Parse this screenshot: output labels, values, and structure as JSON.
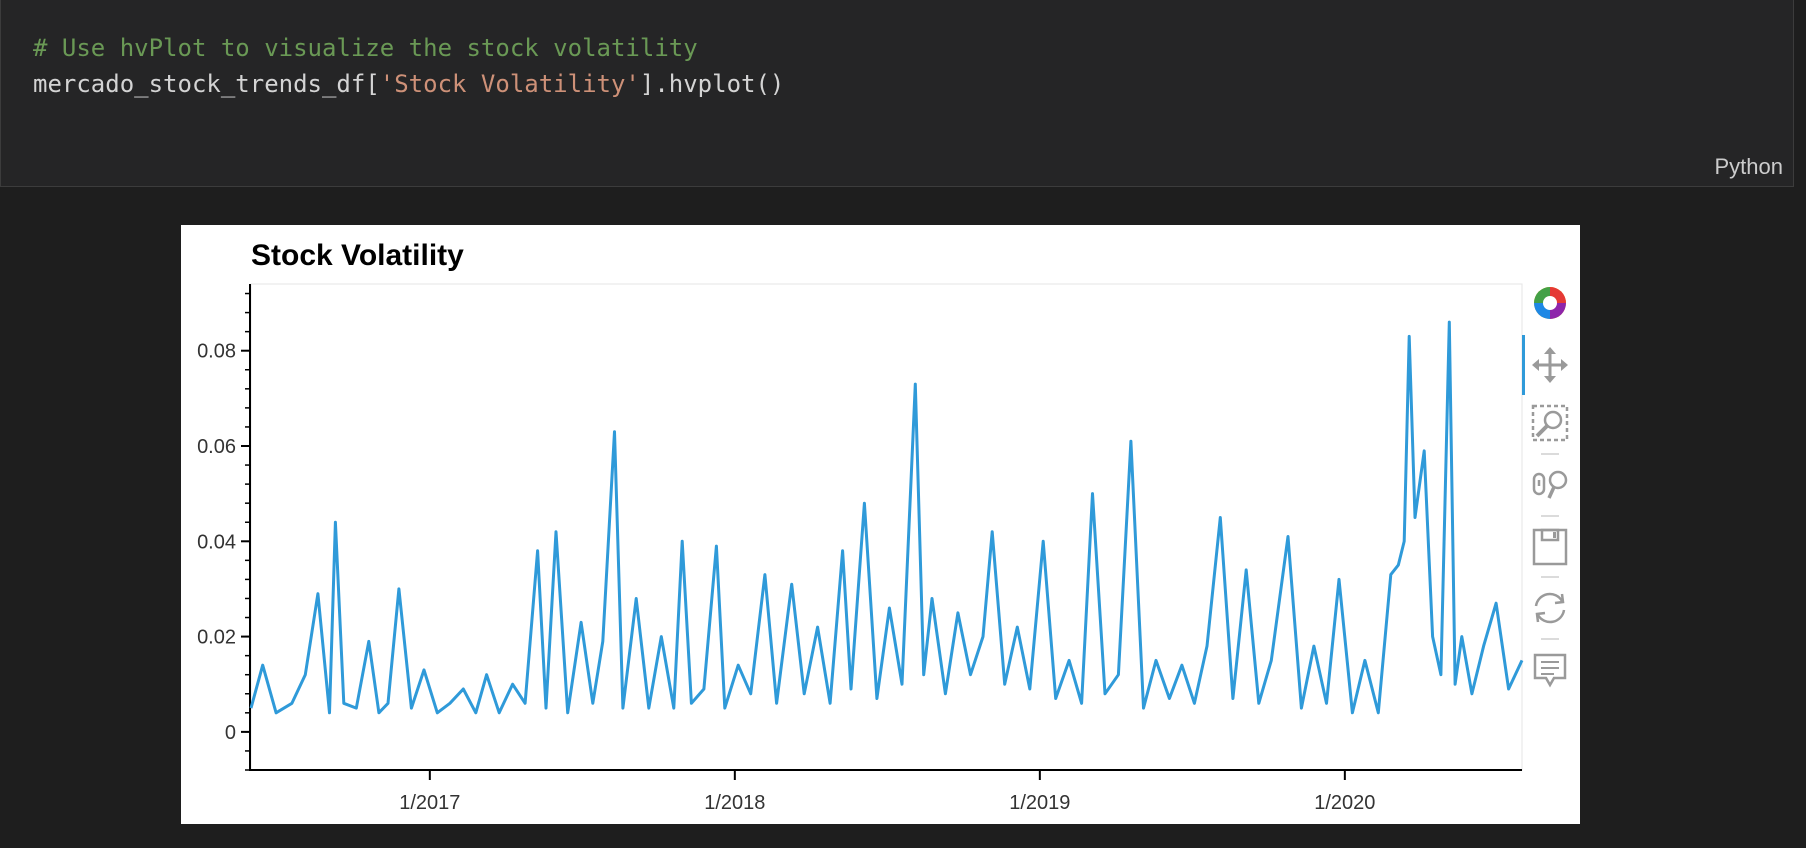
{
  "code_cell": {
    "comment": "# Use hvPlot to visualize the stock volatility",
    "code_prefix": "mercado_stock_trends_df[",
    "code_string": "'Stock Volatility'",
    "code_suffix": "].hvplot()",
    "language_label": "Python"
  },
  "toolbar": {
    "tools": [
      "bokeh-logo-icon",
      "pan-icon",
      "box-zoom-icon",
      "wheel-zoom-icon",
      "save-icon",
      "reset-icon",
      "hover-icon"
    ]
  },
  "colors": {
    "line": "#2f9ad9",
    "background": "#1e1e1e",
    "cell": "#252526"
  },
  "chart_data": {
    "type": "line",
    "title": "Stock Volatility",
    "xlabel": "",
    "ylabel": "",
    "x_ticks": [
      "1/2017",
      "1/2018",
      "1/2019",
      "1/2020"
    ],
    "y_ticks": [
      "0",
      "0.02",
      "0.04",
      "0.06",
      "0.08"
    ],
    "xlim": [
      "2016-06-01",
      "2020-07-31"
    ],
    "ylim": [
      -0.008,
      0.094
    ],
    "grid": false,
    "legend": "none",
    "series": [
      {
        "x": [
          "2016-06-01",
          "2016-06-15",
          "2016-07-01",
          "2016-07-20",
          "2016-08-05",
          "2016-08-20",
          "2016-09-03",
          "2016-09-10",
          "2016-09-20",
          "2016-10-05",
          "2016-10-20",
          "2016-11-01",
          "2016-11-12",
          "2016-11-25",
          "2016-12-10",
          "2016-12-25",
          "2017-01-10",
          "2017-01-25",
          "2017-02-10",
          "2017-02-25",
          "2017-03-10",
          "2017-03-25",
          "2017-04-10",
          "2017-04-25",
          "2017-05-10",
          "2017-05-20",
          "2017-06-01",
          "2017-06-15",
          "2017-07-01",
          "2017-07-15",
          "2017-07-27",
          "2017-08-10",
          "2017-08-20",
          "2017-09-05",
          "2017-09-20",
          "2017-10-05",
          "2017-10-20",
          "2017-10-30",
          "2017-11-10",
          "2017-11-25",
          "2017-12-10",
          "2017-12-20",
          "2018-01-05",
          "2018-01-20",
          "2018-02-06",
          "2018-02-20",
          "2018-03-10",
          "2018-03-25",
          "2018-04-10",
          "2018-04-25",
          "2018-05-10",
          "2018-05-20",
          "2018-06-05",
          "2018-06-20",
          "2018-07-05",
          "2018-07-20",
          "2018-08-05",
          "2018-08-15",
          "2018-08-25",
          "2018-09-10",
          "2018-09-25",
          "2018-10-10",
          "2018-10-25",
          "2018-11-05",
          "2018-11-20",
          "2018-12-05",
          "2018-12-20",
          "2019-01-05",
          "2019-01-20",
          "2019-02-05",
          "2019-02-20",
          "2019-03-05",
          "2019-03-20",
          "2019-04-05",
          "2019-04-20",
          "2019-05-05",
          "2019-05-20",
          "2019-06-05",
          "2019-06-20",
          "2019-07-05",
          "2019-07-20",
          "2019-08-05",
          "2019-08-20",
          "2019-09-05",
          "2019-09-20",
          "2019-10-05",
          "2019-10-25",
          "2019-11-10",
          "2019-11-25",
          "2019-12-10",
          "2019-12-25",
          "2020-01-10",
          "2020-01-25",
          "2020-02-10",
          "2020-02-25",
          "2020-03-05",
          "2020-03-12",
          "2020-03-18",
          "2020-03-25",
          "2020-04-05",
          "2020-04-15",
          "2020-04-25",
          "2020-05-05",
          "2020-05-12",
          "2020-05-20",
          "2020-06-01",
          "2020-06-15",
          "2020-06-30",
          "2020-07-15",
          "2020-07-31"
        ],
        "y": [
          0.005,
          0.014,
          0.004,
          0.006,
          0.012,
          0.029,
          0.004,
          0.044,
          0.006,
          0.005,
          0.019,
          0.004,
          0.006,
          0.03,
          0.005,
          0.013,
          0.004,
          0.006,
          0.009,
          0.004,
          0.012,
          0.004,
          0.01,
          0.006,
          0.038,
          0.005,
          0.042,
          0.004,
          0.023,
          0.006,
          0.019,
          0.063,
          0.005,
          0.028,
          0.005,
          0.02,
          0.005,
          0.04,
          0.006,
          0.009,
          0.039,
          0.005,
          0.014,
          0.008,
          0.033,
          0.006,
          0.031,
          0.008,
          0.022,
          0.006,
          0.038,
          0.009,
          0.048,
          0.007,
          0.026,
          0.01,
          0.073,
          0.012,
          0.028,
          0.008,
          0.025,
          0.012,
          0.02,
          0.042,
          0.01,
          0.022,
          0.009,
          0.04,
          0.007,
          0.015,
          0.006,
          0.05,
          0.008,
          0.012,
          0.061,
          0.005,
          0.015,
          0.007,
          0.014,
          0.006,
          0.018,
          0.045,
          0.007,
          0.034,
          0.006,
          0.015,
          0.041,
          0.005,
          0.018,
          0.006,
          0.032,
          0.004,
          0.015,
          0.004,
          0.033,
          0.035,
          0.04,
          0.083,
          0.045,
          0.059,
          0.02,
          0.012,
          0.086,
          0.01,
          0.02,
          0.008,
          0.018,
          0.027,
          0.009,
          0.015
        ]
      }
    ]
  }
}
